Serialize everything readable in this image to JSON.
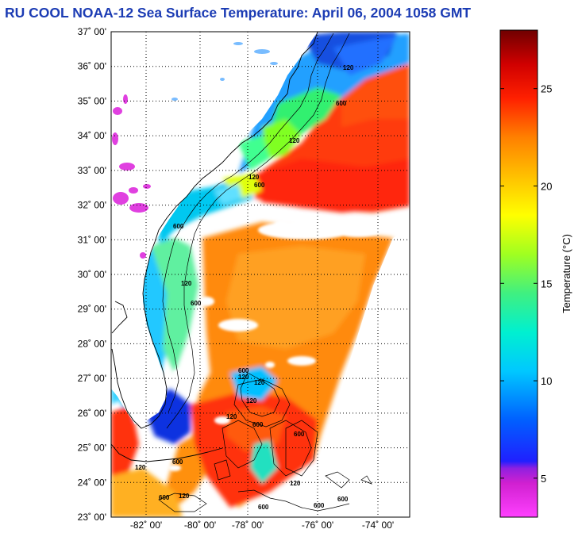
{
  "title": "RU COOL  NOAA-12  Sea Surface Temperature:  April 06, 2004 1058 GMT",
  "latitude_labels": [
    "37˚ 00'",
    "36˚ 00'",
    "35˚ 00'",
    "34˚ 00'",
    "33˚ 00'",
    "32˚ 00'",
    "31˚ 00'",
    "30˚ 00'",
    "29˚ 00'",
    "28˚ 00'",
    "27˚ 00'",
    "26˚ 00'",
    "25˚ 00'",
    "24˚ 00'",
    "23˚ 00'"
  ],
  "longitude_labels": [
    "-82˚ 00'",
    "-80˚ 00'",
    "-78˚ 00'",
    "-76˚ 00'",
    "-74˚ 00'"
  ],
  "contour_labels": [
    "120",
    "600",
    "120",
    "600",
    "120",
    "600",
    "120",
    "120",
    "600",
    "120",
    "600",
    "120",
    "600",
    "600",
    "120",
    "600",
    "120",
    "600",
    "120",
    "120",
    "600",
    "600",
    "600"
  ],
  "colorbar": {
    "title": "Temperature (°C)",
    "ticks": [
      "25",
      "20",
      "15",
      "10",
      "5"
    ],
    "range": [
      3,
      28
    ],
    "colors": [
      "#ff30ff",
      "#d020d0",
      "#8020e0",
      "#2030ff",
      "#0090ff",
      "#00e0f0",
      "#30f0a0",
      "#80ff30",
      "#ffff00",
      "#ffc000",
      "#ff8000",
      "#ff2000",
      "#c00000",
      "#800000"
    ]
  }
}
